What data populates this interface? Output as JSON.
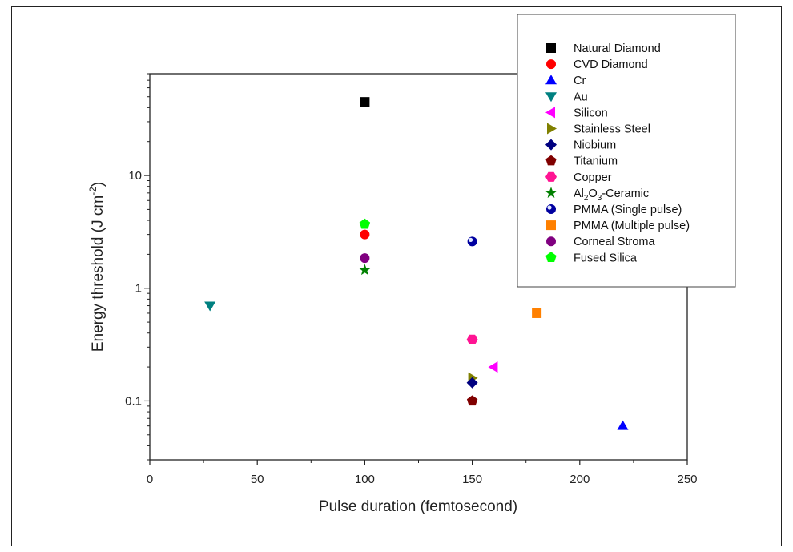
{
  "chart_data": {
    "type": "scatter",
    "title": "",
    "xlabel": "Pulse duration (femtosecond)",
    "ylabel": {
      "main": "Energy threshold (J cm",
      "sup": "-2",
      "close": ")"
    },
    "x_scale": "linear",
    "y_scale": "log",
    "xlim": [
      0,
      250
    ],
    "ylim": [
      0.03,
      80
    ],
    "x_ticks": [
      0,
      50,
      100,
      150,
      200,
      250
    ],
    "x_tick_labels": [
      "0",
      "50",
      "100",
      "150",
      "200",
      "250"
    ],
    "y_ticks": [
      0.1,
      1,
      10
    ],
    "y_tick_labels": [
      "0.1",
      "1",
      "10"
    ],
    "grid": false,
    "legend_position": "top-right",
    "series": [
      {
        "name": "Natural Diamond",
        "label_parts": [
          [
            "Natural Diamond",
            ""
          ]
        ],
        "marker": "square",
        "color": "#000000",
        "x": [
          100
        ],
        "y": [
          45
        ]
      },
      {
        "name": "CVD Diamond",
        "label_parts": [
          [
            "CVD Diamond",
            ""
          ]
        ],
        "marker": "circle",
        "color": "#ff0000",
        "x": [
          100
        ],
        "y": [
          3.0
        ]
      },
      {
        "name": "Cr",
        "label_parts": [
          [
            "Cr",
            ""
          ]
        ],
        "marker": "triangle-up",
        "color": "#0000ff",
        "x": [
          220
        ],
        "y": [
          0.06
        ]
      },
      {
        "name": "Au",
        "label_parts": [
          [
            "Au",
            ""
          ]
        ],
        "marker": "triangle-down",
        "color": "#008080",
        "x": [
          28
        ],
        "y": [
          0.7
        ]
      },
      {
        "name": "Silicon",
        "label_parts": [
          [
            "Silicon",
            ""
          ]
        ],
        "marker": "triangle-left",
        "color": "#ff00ff",
        "x": [
          160
        ],
        "y": [
          0.2
        ]
      },
      {
        "name": "Stainless Steel",
        "label_parts": [
          [
            "Stainless Steel",
            ""
          ]
        ],
        "marker": "triangle-right",
        "color": "#808000",
        "x": [
          150
        ],
        "y": [
          0.16
        ]
      },
      {
        "name": "Niobium",
        "label_parts": [
          [
            "Niobium",
            ""
          ]
        ],
        "marker": "diamond",
        "color": "#000080",
        "x": [
          150
        ],
        "y": [
          0.145
        ]
      },
      {
        "name": "Titanium",
        "label_parts": [
          [
            "Titanium",
            ""
          ]
        ],
        "marker": "pentagon",
        "color": "#800000",
        "x": [
          150
        ],
        "y": [
          0.1
        ]
      },
      {
        "name": "Copper",
        "label_parts": [
          [
            "Copper",
            ""
          ]
        ],
        "marker": "hexagon",
        "color": "#ff1493",
        "x": [
          150
        ],
        "y": [
          0.35
        ]
      },
      {
        "name": "Al2O3-Ceramic",
        "label_parts": [
          [
            "Al",
            ""
          ],
          [
            "2",
            "sub"
          ],
          [
            "O",
            ""
          ],
          [
            "3",
            "sub"
          ],
          [
            "-Ceramic",
            ""
          ]
        ],
        "marker": "star",
        "color": "#008000",
        "x": [
          100
        ],
        "y": [
          1.45
        ]
      },
      {
        "name": "PMMA (Single pulse)",
        "label_parts": [
          [
            "PMMA (Single pulse)",
            ""
          ]
        ],
        "marker": "sphere",
        "color": "#0000a0",
        "x": [
          150
        ],
        "y": [
          2.6
        ]
      },
      {
        "name": "PMMA (Multiple pulse)",
        "label_parts": [
          [
            "PMMA (Multiple pulse)",
            ""
          ]
        ],
        "marker": "square",
        "color": "#ff8000",
        "x": [
          180
        ],
        "y": [
          0.6
        ]
      },
      {
        "name": "Corneal Stroma",
        "label_parts": [
          [
            "Corneal Stroma",
            ""
          ]
        ],
        "marker": "circle",
        "color": "#800080",
        "x": [
          100
        ],
        "y": [
          1.85
        ]
      },
      {
        "name": "Fused Silica",
        "label_parts": [
          [
            "Fused Silica",
            ""
          ]
        ],
        "marker": "pentagon",
        "color": "#00ff00",
        "x": [
          100
        ],
        "y": [
          3.7
        ]
      }
    ]
  }
}
